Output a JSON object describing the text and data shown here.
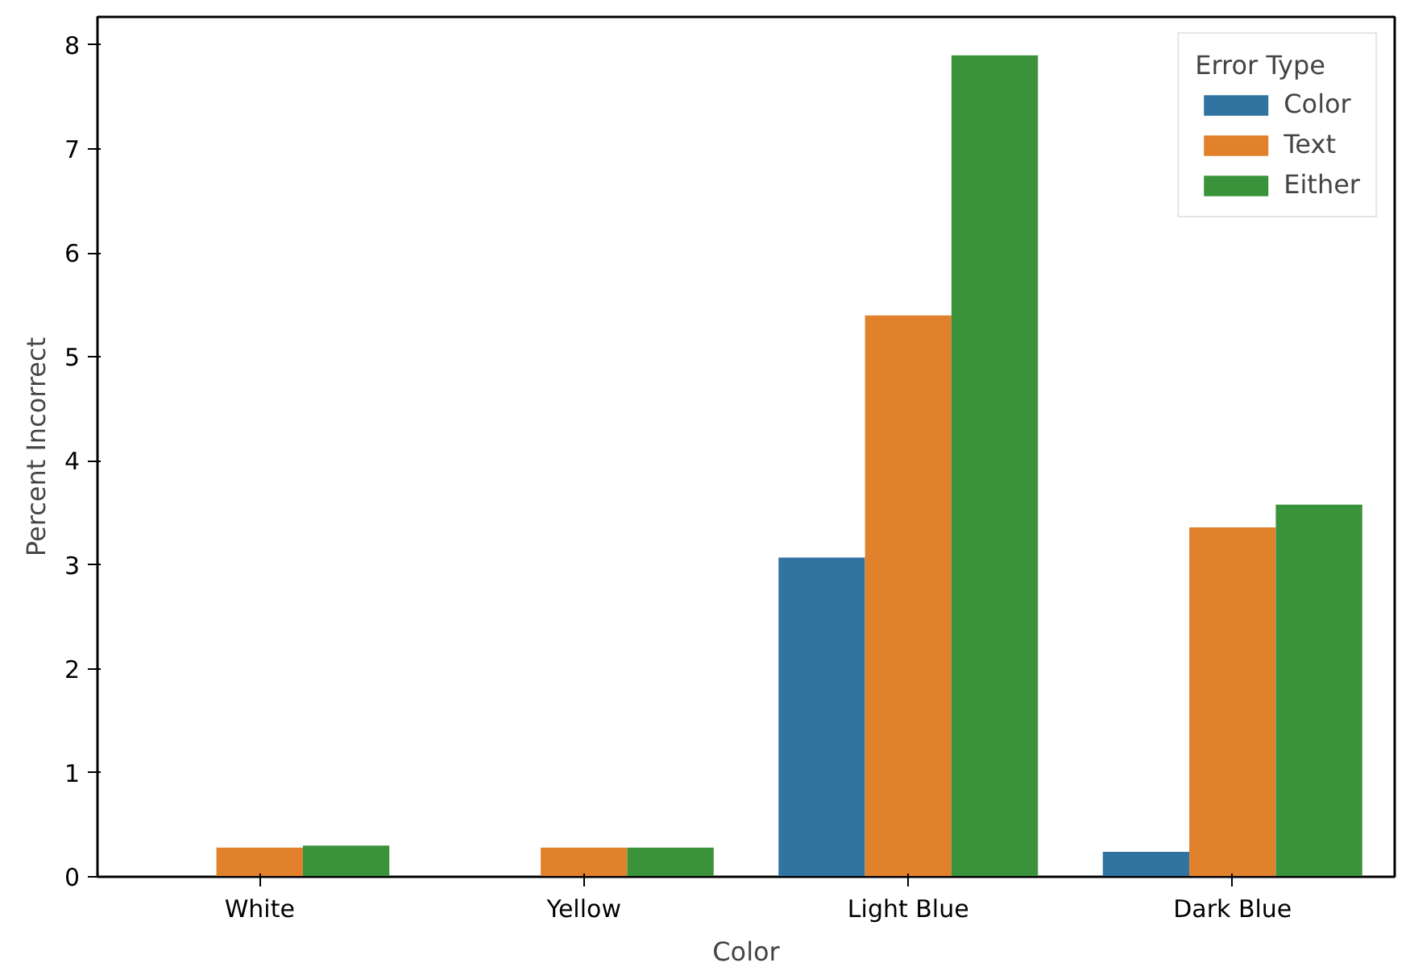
{
  "chart_data": {
    "type": "bar",
    "xlabel": "Color",
    "ylabel": "Percent Incorrect",
    "legend_title": "Error Type",
    "categories": [
      "White",
      "Yellow",
      "Light Blue",
      "Dark Blue"
    ],
    "series": [
      {
        "name": "Color",
        "color": "#3274a1",
        "values": [
          0,
          0,
          3.07,
          0.24
        ]
      },
      {
        "name": "Text",
        "color": "#e1812c",
        "values": [
          0.28,
          0.28,
          5.4,
          3.36
        ]
      },
      {
        "name": "Either",
        "color": "#3a923a",
        "values": [
          0.3,
          0.28,
          7.9,
          3.58
        ]
      }
    ],
    "ylim": [
      0,
      8.27
    ],
    "yticks": [
      0,
      1,
      2,
      3,
      4,
      5,
      6,
      7,
      8
    ],
    "grid": false,
    "legend": "top right"
  }
}
